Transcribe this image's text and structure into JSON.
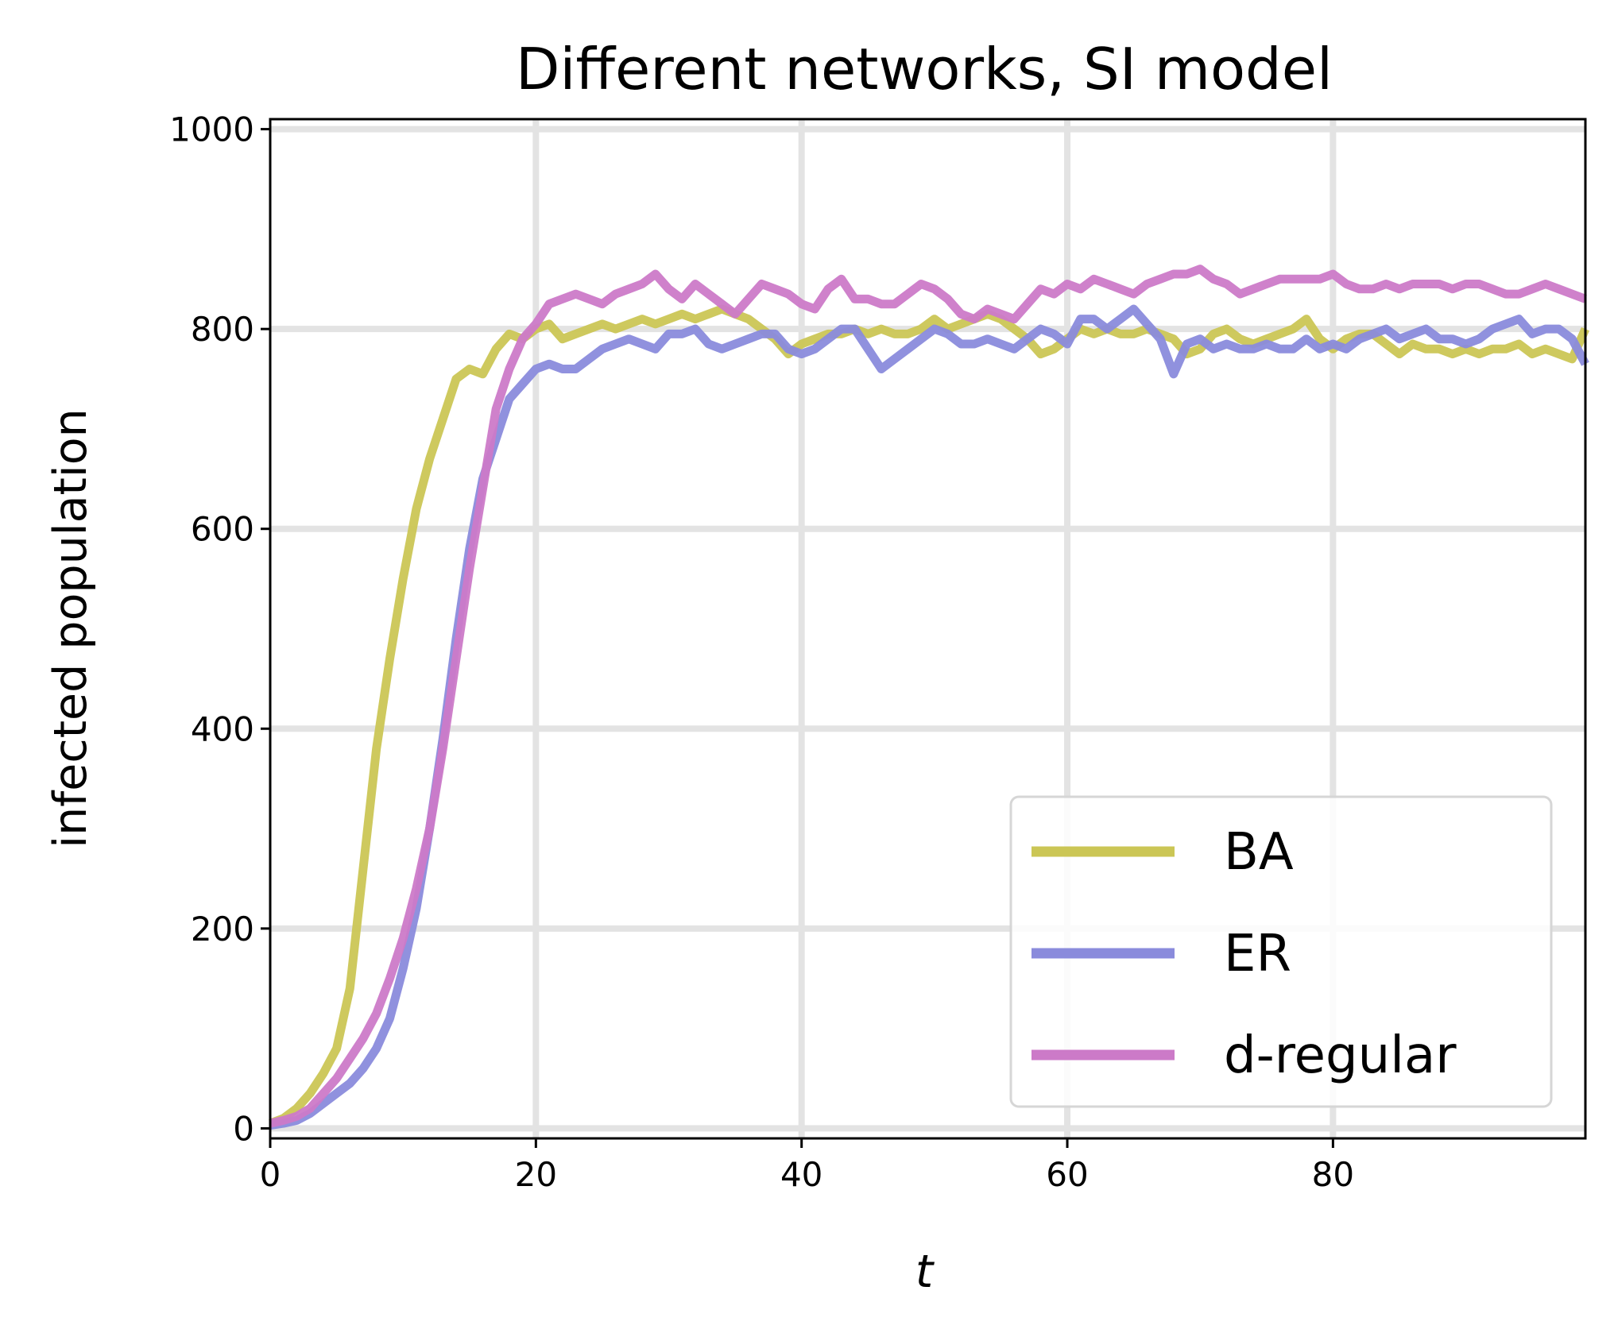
{
  "chart_data": {
    "type": "line",
    "title": "Different networks, SI model",
    "xlabel": "t",
    "ylabel": "infected population",
    "xlim": [
      0,
      99
    ],
    "ylim": [
      -10,
      1010
    ],
    "xticks": [
      0,
      20,
      40,
      60,
      80
    ],
    "yticks": [
      0,
      200,
      400,
      600,
      800,
      1000
    ],
    "xtick_labels": [
      "0",
      "20",
      "40",
      "60",
      "80"
    ],
    "ytick_labels": [
      "0",
      "200",
      "400",
      "600",
      "800",
      "1000"
    ],
    "grid": true,
    "legend_position": "lower-right",
    "x": [
      0,
      1,
      2,
      3,
      4,
      5,
      6,
      7,
      8,
      9,
      10,
      11,
      12,
      13,
      14,
      15,
      16,
      17,
      18,
      19,
      20,
      21,
      22,
      23,
      24,
      25,
      26,
      27,
      28,
      29,
      30,
      31,
      32,
      33,
      34,
      35,
      36,
      37,
      38,
      39,
      40,
      41,
      42,
      43,
      44,
      45,
      46,
      47,
      48,
      49,
      50,
      51,
      52,
      53,
      54,
      55,
      56,
      57,
      58,
      59,
      60,
      61,
      62,
      63,
      64,
      65,
      66,
      67,
      68,
      69,
      70,
      71,
      72,
      73,
      74,
      75,
      76,
      77,
      78,
      79,
      80,
      81,
      82,
      83,
      84,
      85,
      86,
      87,
      88,
      89,
      90,
      91,
      92,
      93,
      94,
      95,
      96,
      97,
      98,
      99
    ],
    "series": [
      {
        "name": "BA",
        "color": "#cbc655",
        "values": [
          5,
          10,
          20,
          35,
          55,
          80,
          140,
          260,
          380,
          470,
          550,
          620,
          670,
          710,
          750,
          760,
          755,
          780,
          795,
          790,
          800,
          805,
          790,
          795,
          800,
          805,
          800,
          805,
          810,
          805,
          810,
          815,
          810,
          815,
          820,
          815,
          810,
          800,
          790,
          775,
          785,
          790,
          795,
          795,
          800,
          795,
          800,
          795,
          795,
          800,
          810,
          800,
          805,
          810,
          815,
          810,
          800,
          790,
          775,
          780,
          790,
          800,
          795,
          800,
          795,
          795,
          800,
          795,
          790,
          775,
          780,
          795,
          800,
          790,
          785,
          790,
          795,
          800,
          810,
          790,
          780,
          790,
          795,
          795,
          785,
          775,
          785,
          780,
          780,
          775,
          780,
          775,
          780,
          780,
          785,
          775,
          780,
          775,
          770,
          800
        ]
      },
      {
        "name": "ER",
        "color": "#8a8bdc",
        "values": [
          3,
          5,
          8,
          15,
          25,
          35,
          45,
          60,
          80,
          110,
          160,
          220,
          300,
          390,
          490,
          580,
          650,
          690,
          730,
          745,
          760,
          765,
          760,
          760,
          770,
          780,
          785,
          790,
          785,
          780,
          795,
          795,
          800,
          785,
          780,
          785,
          790,
          795,
          795,
          780,
          775,
          780,
          790,
          800,
          800,
          780,
          760,
          770,
          780,
          790,
          800,
          795,
          785,
          785,
          790,
          785,
          780,
          790,
          800,
          795,
          785,
          810,
          810,
          800,
          810,
          820,
          805,
          790,
          755,
          785,
          790,
          780,
          785,
          780,
          780,
          785,
          780,
          780,
          790,
          780,
          785,
          780,
          790,
          795,
          800,
          790,
          795,
          800,
          790,
          790,
          785,
          790,
          800,
          805,
          810,
          795,
          800,
          800,
          790,
          765
        ]
      },
      {
        "name": "d-regular",
        "color": "#cc7ac8",
        "values": [
          5,
          8,
          12,
          20,
          35,
          50,
          70,
          90,
          115,
          150,
          190,
          240,
          300,
          380,
          470,
          560,
          640,
          720,
          760,
          790,
          805,
          825,
          830,
          835,
          830,
          825,
          835,
          840,
          845,
          855,
          840,
          830,
          845,
          835,
          825,
          815,
          830,
          845,
          840,
          835,
          825,
          820,
          840,
          850,
          830,
          830,
          825,
          825,
          835,
          845,
          840,
          830,
          815,
          810,
          820,
          815,
          810,
          825,
          840,
          835,
          845,
          840,
          850,
          845,
          840,
          835,
          845,
          850,
          855,
          855,
          860,
          850,
          845,
          835,
          840,
          845,
          850,
          850,
          850,
          850,
          855,
          845,
          840,
          840,
          845,
          840,
          845,
          845,
          845,
          840,
          845,
          845,
          840,
          835,
          835,
          840,
          845,
          840,
          835,
          830
        ]
      }
    ]
  }
}
